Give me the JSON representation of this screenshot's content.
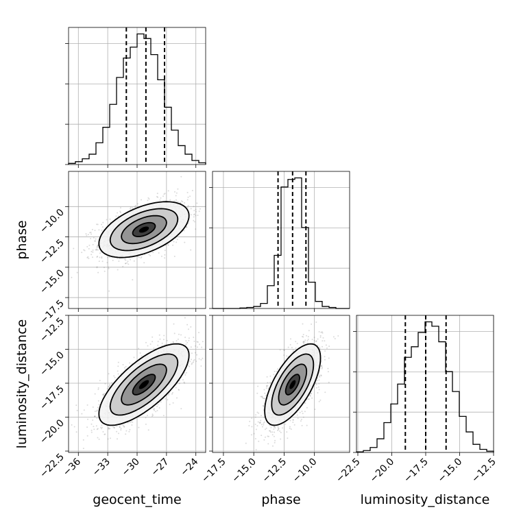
{
  "chart_data": {
    "type": "corner",
    "parameters": [
      "geocent_time",
      "phase",
      "luminosity_distance"
    ],
    "ranges": {
      "geocent_time": [
        -37,
        -23
      ],
      "phase": [
        -18.4,
        -7.1
      ],
      "luminosity_distance": [
        -22.6,
        -12.5
      ]
    },
    "ticks": {
      "geocent_time": [
        -36,
        -33,
        -30,
        -27,
        -24
      ],
      "phase": [
        -17.5,
        -15.0,
        -12.5,
        -10.0
      ],
      "luminosity_distance": [
        -22.5,
        -20.0,
        -17.5,
        -15.0,
        -12.5
      ]
    },
    "tick_labels": {
      "geocent_time": [
        "−36",
        "−33",
        "−30",
        "−27",
        "−24"
      ],
      "phase": [
        "−17.5",
        "−15.0",
        "−12.5",
        "−10.0"
      ],
      "luminosity_distance": [
        "−22.5",
        "−20.0",
        "−17.5",
        "−15.0",
        "−12.5"
      ]
    },
    "histograms": {
      "geocent_time": {
        "bin_edges": [
          -37,
          -36.3,
          -35.6,
          -34.9,
          -34.2,
          -33.5,
          -32.8,
          -32.1,
          -31.4,
          -30.7,
          -30,
          -29.3,
          -28.6,
          -27.9,
          -27.2,
          -26.5,
          -25.8,
          -25.1,
          -24.4,
          -23.7,
          -23
        ],
        "counts": [
          2,
          5,
          10,
          18,
          38,
          65,
          105,
          152,
          186,
          205,
          228,
          220,
          192,
          148,
          100,
          60,
          33,
          18,
          7,
          3
        ],
        "quantiles": [
          -31.1,
          -29.1,
          -27.2
        ]
      },
      "phase": {
        "bin_edges": [
          -18.4,
          -17.835,
          -17.27,
          -16.705,
          -16.14,
          -15.575,
          -15.01,
          -14.445,
          -13.88,
          -13.315,
          -12.75,
          -12.185,
          -11.62,
          -11.055,
          -10.49,
          -9.925,
          -9.36,
          -8.795,
          -8.23,
          -7.665,
          -7.1
        ],
        "counts": [
          0,
          0,
          0,
          0,
          1,
          2,
          4,
          10,
          45,
          105,
          240,
          255,
          258,
          160,
          52,
          14,
          4,
          2,
          0,
          0
        ],
        "quantiles": [
          -13.0,
          -11.8,
          -10.7
        ]
      },
      "luminosity_distance": {
        "bin_edges": [
          -22.6,
          -22.095,
          -21.59,
          -21.085,
          -20.58,
          -20.075,
          -19.57,
          -19.065,
          -18.56,
          -18.055,
          -17.55,
          -17.045,
          -16.54,
          -16.035,
          -15.53,
          -15.025,
          -14.52,
          -14.015,
          -13.51,
          -13.005,
          -12.5
        ],
        "counts": [
          1,
          3,
          8,
          22,
          48,
          78,
          110,
          153,
          170,
          193,
          210,
          203,
          178,
          130,
          98,
          58,
          33,
          13,
          5,
          2
        ],
        "quantiles": [
          -19.0,
          -17.5,
          -16.0
        ]
      }
    },
    "pairs": [
      {
        "x": "geocent_time",
        "y": "phase",
        "mean": [
          -29.3,
          -11.9
        ],
        "sd": [
          2.3,
          1.15
        ],
        "corr": 0.5,
        "n_samples": 1600,
        "contour_levels_sigma": [
          0.5,
          1.0,
          1.5,
          2.0
        ]
      },
      {
        "x": "geocent_time",
        "y": "luminosity_distance",
        "mean": [
          -29.3,
          -17.6
        ],
        "sd": [
          2.3,
          1.5
        ],
        "corr": 0.72,
        "n_samples": 1600,
        "contour_levels_sigma": [
          0.5,
          1.0,
          1.5,
          2.0
        ]
      },
      {
        "x": "phase",
        "y": "luminosity_distance",
        "mean": [
          -11.8,
          -17.6
        ],
        "sd": [
          1.15,
          1.5
        ],
        "corr": 0.65,
        "n_samples": 1600,
        "contour_levels_sigma": [
          0.5,
          1.0,
          1.5,
          2.0
        ]
      }
    ],
    "grid": true
  }
}
